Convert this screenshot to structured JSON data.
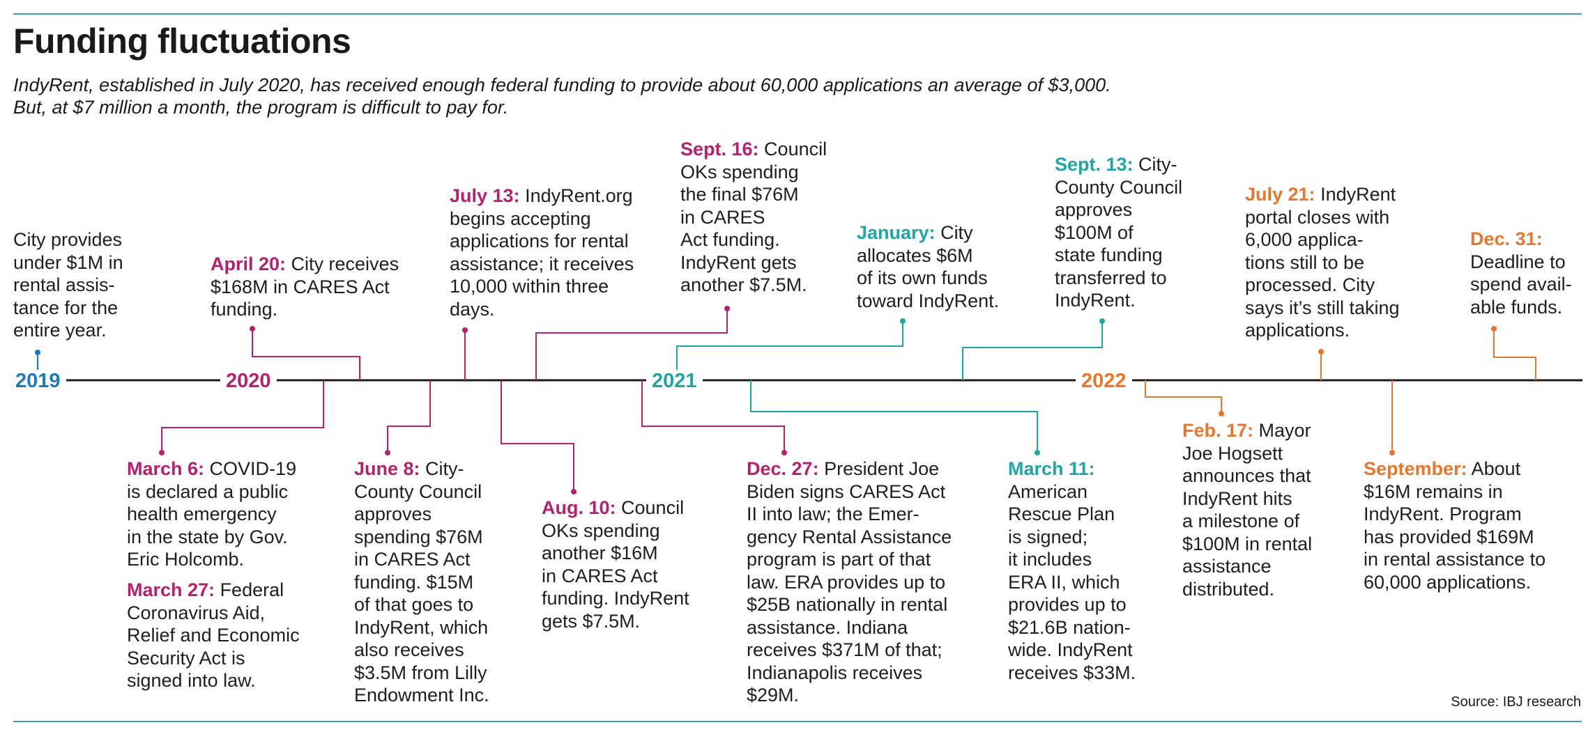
{
  "title": "Funding fluctuations",
  "subtitle": [
    "IndyRent, established in July 2020, has received enough federal funding to provide about 60,000 applications an average of $3,000.",
    "But, at $7 million a month, the program is difficult to pay for."
  ],
  "years": [
    "2019",
    "2020",
    "2021",
    "2022"
  ],
  "colors": {
    "2019": "#1a7cc0",
    "2020": "#b5216e",
    "2021": "#1fa6a4",
    "2022": "#e8772e",
    "rule": "#3f9fb5"
  },
  "events": [
    {
      "date": "",
      "lines": [
        "City provides",
        "under $1M in",
        "rental assis-",
        "tance for the",
        "entire year."
      ]
    },
    {
      "date": "April 20:",
      "lines": [
        "City receives",
        "$168M in CARES Act",
        "funding."
      ]
    },
    {
      "date": "March 6:",
      "lines": [
        "COVID-19",
        "is declared a public",
        "health emergency",
        "in the state by Gov.",
        "Eric Holcomb."
      ]
    },
    {
      "date": "March 27:",
      "lines": [
        "Federal",
        "Coronavirus Aid,",
        "Relief and Economic",
        "Security Act is",
        "signed into law."
      ]
    },
    {
      "date": "June 8:",
      "lines": [
        "City-",
        "County Council",
        "approves",
        "spending $76M",
        "in CARES Act",
        "funding. $15M",
        "of that goes to",
        "IndyRent, which",
        "also receives",
        "$3.5M from Lilly",
        "Endowment Inc."
      ]
    },
    {
      "date": "July 13:",
      "lines": [
        "IndyRent.org",
        "begins accepting",
        "applications for rental",
        "assistance; it receives",
        "10,000 within three",
        "days."
      ]
    },
    {
      "date": "Aug. 10:",
      "lines": [
        "Council",
        "OKs spending",
        "another $16M",
        "in CARES Act",
        "funding. IndyRent",
        "gets $7.5M."
      ]
    },
    {
      "date": "Sept. 16:",
      "lines": [
        "Council",
        "OKs spending",
        "the final $76M",
        "in CARES",
        "Act funding.",
        "IndyRent gets",
        "another $7.5M."
      ]
    },
    {
      "date": "Dec. 27:",
      "lines": [
        "President Joe",
        "Biden signs CARES Act",
        "II into law; the Emer-",
        "gency Rental Assistance",
        "program is part of that",
        "law. ERA provides up to",
        "$25B nationally in rental",
        "assistance. Indiana",
        "receives $371M of that;",
        "Indianapolis receives",
        "$29M."
      ]
    },
    {
      "date": "January:",
      "lines": [
        "City",
        "allocates $6M",
        "of its own funds",
        "toward IndyRent."
      ]
    },
    {
      "date": "March 11:",
      "lines": [
        "",
        "American",
        "Rescue Plan",
        "is signed;",
        "it includes",
        "ERA II, which",
        "provides up to",
        "$21.6B nation-",
        "wide. IndyRent",
        "receives $33M."
      ]
    },
    {
      "date": "Sept. 13:",
      "lines": [
        "City-",
        "County Council",
        "approves",
        "$100M of",
        "state funding",
        "transferred to",
        "IndyRent."
      ]
    },
    {
      "date": "Feb. 17:",
      "lines": [
        "Mayor",
        "Joe Hogsett",
        "announces that",
        "IndyRent hits",
        "a milestone of",
        "$100M in rental",
        "assistance",
        "distributed."
      ]
    },
    {
      "date": "July 21:",
      "lines": [
        "IndyRent",
        "portal closes with",
        "6,000 applica-",
        "tions still to be",
        "processed. City",
        "says it’s still taking",
        "applications."
      ]
    },
    {
      "date": "September:",
      "lines": [
        "About",
        "$16M remains in",
        "IndyRent. Program",
        "has provided $169M",
        "in rental assistance to",
        "60,000 applications."
      ]
    },
    {
      "date": "Dec. 31:",
      "lines": [
        "",
        "Deadline to",
        "spend avail-",
        "able funds."
      ]
    }
  ],
  "source": "Source: IBJ research"
}
